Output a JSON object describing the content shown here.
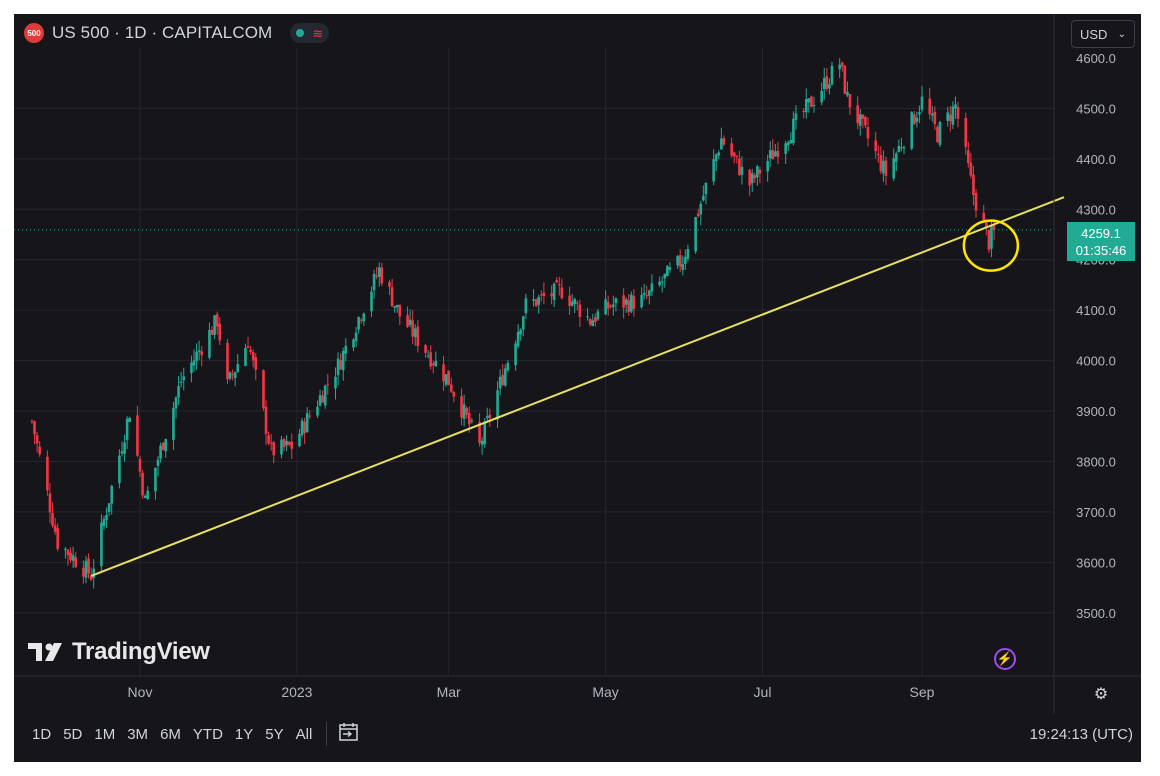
{
  "header": {
    "symbol_badge": "500",
    "title": "US 500 · 1D · CAPITALCOM",
    "currency": "USD"
  },
  "logo": {
    "text": "TradingView"
  },
  "last_price": {
    "price": "4259.1",
    "countdown": "01:35:46"
  },
  "toolbar": {
    "timeframes": [
      "1D",
      "5D",
      "1M",
      "3M",
      "6M",
      "YTD",
      "1Y",
      "5Y",
      "All"
    ],
    "clock": "19:24:13 (UTC)"
  },
  "colors": {
    "background": "#16161a",
    "up": "#22ab94",
    "down": "#f23645",
    "trendline": "#e8e060",
    "annotation_circle": "#ffe600",
    "text": "#b2b5be"
  },
  "chart_data": {
    "type": "candlestick",
    "x_tick_labels": [
      "Nov",
      "2023",
      "Mar",
      "May",
      "Jul",
      "Sep"
    ],
    "x_ticks": [
      "2022-11-01",
      "2023-01-01",
      "2023-03-01",
      "2023-05-01",
      "2023-07-01",
      "2023-09-01"
    ],
    "y_tick_labels": [
      "3500.0",
      "3600.0",
      "3700.0",
      "3800.0",
      "3900.0",
      "4000.0",
      "4100.0",
      "4200.0",
      "4300.0",
      "4400.0",
      "4500.0"
    ],
    "ylim": [
      3435,
      4610
    ],
    "grid": true,
    "last_value": 4259.1,
    "trendline": {
      "from": [
        "2022-10-13",
        3573
      ],
      "to": [
        "2023-10-04",
        4280
      ],
      "extends_right": true
    },
    "annotation": {
      "shape": "circle",
      "center": [
        "2023-09-27",
        4228
      ]
    },
    "close_path": [
      [
        "2022-09-20",
        3880
      ],
      [
        "2022-09-30",
        3640
      ],
      [
        "2022-10-13",
        3575
      ],
      [
        "2022-10-28",
        3900
      ],
      [
        "2022-11-03",
        3720
      ],
      [
        "2022-11-17",
        3960
      ],
      [
        "2022-12-01",
        4080
      ],
      [
        "2022-12-05",
        3950
      ],
      [
        "2022-12-13",
        4040
      ],
      [
        "2022-12-22",
        3820
      ],
      [
        "2022-12-30",
        3830
      ],
      [
        "2023-01-17",
        3990
      ],
      [
        "2023-02-02",
        4180
      ],
      [
        "2023-02-10",
        4090
      ],
      [
        "2023-03-01",
        3960
      ],
      [
        "2023-03-13",
        3830
      ],
      [
        "2023-03-31",
        4110
      ],
      [
        "2023-04-14",
        4140
      ],
      [
        "2023-04-25",
        4080
      ],
      [
        "2023-05-03",
        4110
      ],
      [
        "2023-05-16",
        4120
      ],
      [
        "2023-05-31",
        4200
      ],
      [
        "2023-06-15",
        4440
      ],
      [
        "2023-06-26",
        4350
      ],
      [
        "2023-07-11",
        4450
      ],
      [
        "2023-07-31",
        4590
      ],
      [
        "2023-08-03",
        4520
      ],
      [
        "2023-08-18",
        4370
      ],
      [
        "2023-09-01",
        4515
      ],
      [
        "2023-09-07",
        4450
      ],
      [
        "2023-09-14",
        4505
      ],
      [
        "2023-09-21",
        4330
      ],
      [
        "2023-09-27",
        4235
      ],
      [
        "2023-09-29",
        4259.1
      ]
    ]
  }
}
